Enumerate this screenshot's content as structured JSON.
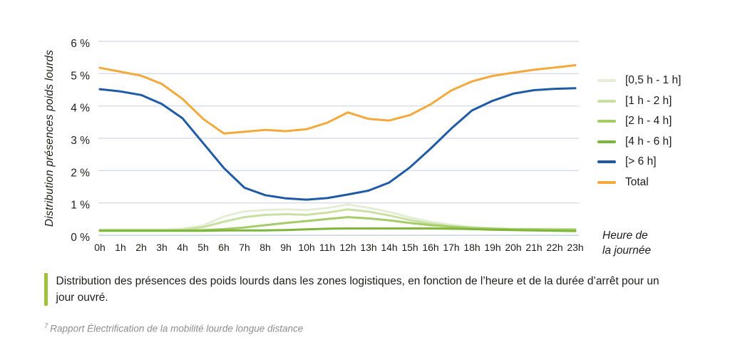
{
  "figure": {
    "y_axis_title": "Distribution présences poids lourds",
    "x_axis_note_line1": "Heure de",
    "x_axis_note_line2": "la journée"
  },
  "caption": {
    "text": "Distribution des présences des poids lourds dans les zones logistiques, en fonction de l’heure et de la durée d’arrêt pour un jour ouvré."
  },
  "footnote": {
    "marker": "7",
    "text": "Rapport Électrification de la mobilité lourde longue distance"
  },
  "colors": {
    "gridline": "#ccd6e5",
    "baseline": "#b7c6dd",
    "tick_text": "#1d1d1b",
    "caption_bar": "#a0c13e",
    "footnote_text": "#8f8f8f"
  },
  "chart_data": {
    "type": "line",
    "title": "",
    "xlabel": "Heure de la journée",
    "ylabel": "Distribution présences poids lourds",
    "x": [
      "0h",
      "1h",
      "2h",
      "3h",
      "4h",
      "5h",
      "6h",
      "7h",
      "8h",
      "9h",
      "10h",
      "11h",
      "12h",
      "13h",
      "14h",
      "15h",
      "16h",
      "17h",
      "18h",
      "19h",
      "20h",
      "21h",
      "22h",
      "23h"
    ],
    "y_tick_values": [
      0,
      1,
      2,
      3,
      4,
      5,
      6
    ],
    "y_tick_labels": [
      "0 %",
      "1 %",
      "2 %",
      "3 %",
      "4 %",
      "5 %",
      "6 %"
    ],
    "ylim": [
      0,
      6
    ],
    "grid": true,
    "legend_position": "right",
    "series": [
      {
        "name": "[0,5 h - 1 h]",
        "color": "#e4eed6",
        "values": [
          0.18,
          0.18,
          0.18,
          0.18,
          0.2,
          0.3,
          0.58,
          0.74,
          0.78,
          0.8,
          0.78,
          0.84,
          0.95,
          0.85,
          0.72,
          0.55,
          0.42,
          0.32,
          0.26,
          0.22,
          0.2,
          0.2,
          0.2,
          0.19
        ]
      },
      {
        "name": "[1 h - 2 h]",
        "color": "#c9e0a3",
        "values": [
          0.15,
          0.15,
          0.15,
          0.15,
          0.17,
          0.25,
          0.42,
          0.56,
          0.63,
          0.65,
          0.63,
          0.7,
          0.8,
          0.73,
          0.61,
          0.47,
          0.36,
          0.28,
          0.23,
          0.2,
          0.18,
          0.18,
          0.18,
          0.18
        ]
      },
      {
        "name": "[2 h - 4 h]",
        "color": "#a6cc69",
        "values": [
          0.15,
          0.15,
          0.15,
          0.15,
          0.15,
          0.16,
          0.19,
          0.24,
          0.31,
          0.38,
          0.44,
          0.5,
          0.56,
          0.52,
          0.46,
          0.38,
          0.31,
          0.26,
          0.22,
          0.2,
          0.18,
          0.18,
          0.17,
          0.17
        ]
      },
      {
        "name": "[4 h - 6 h]",
        "color": "#7db63a",
        "values": [
          0.14,
          0.14,
          0.14,
          0.14,
          0.14,
          0.14,
          0.15,
          0.15,
          0.15,
          0.16,
          0.18,
          0.2,
          0.21,
          0.21,
          0.21,
          0.21,
          0.21,
          0.2,
          0.19,
          0.17,
          0.16,
          0.15,
          0.14,
          0.13
        ]
      },
      {
        "name": "[> 6 h]",
        "color": "#1e5aa6",
        "values": [
          4.52,
          4.45,
          4.34,
          4.06,
          3.62,
          2.85,
          2.08,
          1.47,
          1.24,
          1.14,
          1.1,
          1.15,
          1.26,
          1.38,
          1.63,
          2.1,
          2.68,
          3.3,
          3.86,
          4.16,
          4.38,
          4.49,
          4.53,
          4.55
        ]
      },
      {
        "name": "Total",
        "color": "#f5a83b",
        "values": [
          5.18,
          5.06,
          4.94,
          4.68,
          4.22,
          3.6,
          3.15,
          3.2,
          3.26,
          3.22,
          3.28,
          3.48,
          3.8,
          3.6,
          3.55,
          3.72,
          4.05,
          4.48,
          4.76,
          4.93,
          5.03,
          5.12,
          5.19,
          5.26
        ]
      }
    ]
  }
}
